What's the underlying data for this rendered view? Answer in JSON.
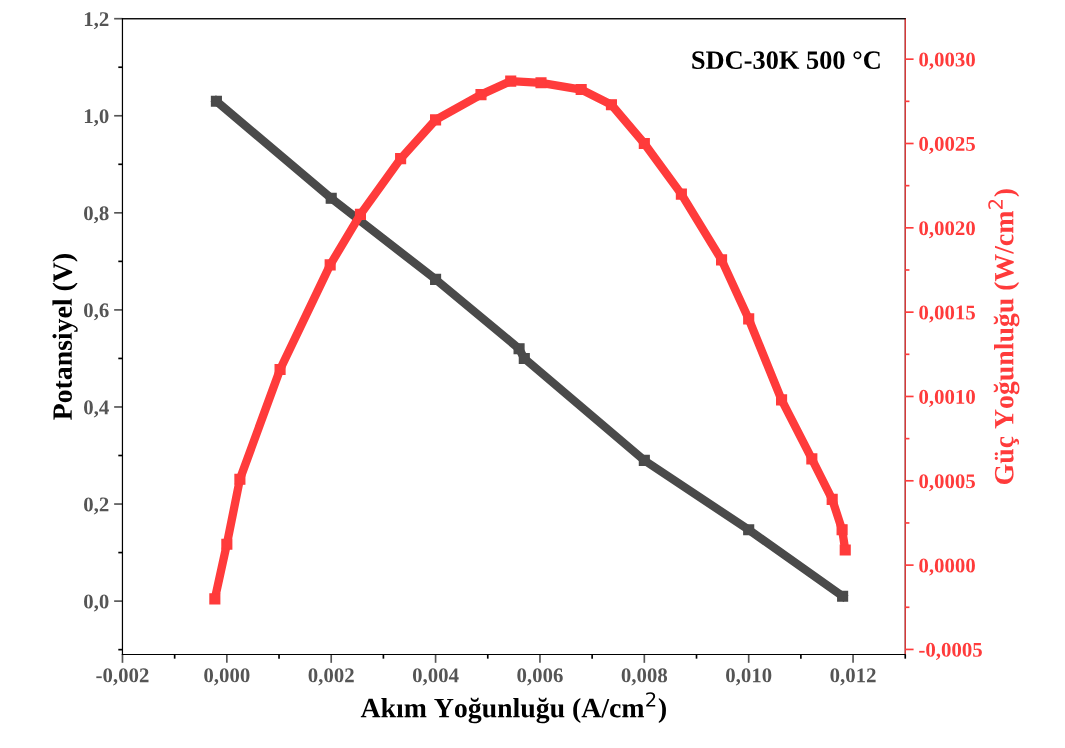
{
  "chart_data": {
    "type": "line",
    "xlabel": "Akım Yoğunluğu (A/cm$^{2}$)",
    "ylabel": "Potansiyel (V)",
    "y2label": "Güç Yoğunluğu (W/cm$^{2}$)",
    "annotations": [
      "SDC-30K 500 °C"
    ],
    "xlim": [
      -0.002,
      0.013
    ],
    "ylim": [
      -0.11,
      1.2
    ],
    "y2lim": [
      -0.00053,
      0.00324
    ],
    "xticks": [
      {
        "value": -0.002,
        "label": "-0,002"
      },
      {
        "value": 0.0,
        "label": "0,000"
      },
      {
        "value": 0.002,
        "label": "0,002"
      },
      {
        "value": 0.004,
        "label": "0,004"
      },
      {
        "value": 0.006,
        "label": "0,006"
      },
      {
        "value": 0.008,
        "label": "0,008"
      },
      {
        "value": 0.01,
        "label": "0,010"
      },
      {
        "value": 0.012,
        "label": "0,012"
      }
    ],
    "yticks": [
      {
        "value": 0.0,
        "label": "0,0"
      },
      {
        "value": 0.2,
        "label": "0,2"
      },
      {
        "value": 0.4,
        "label": "0,4"
      },
      {
        "value": 0.6,
        "label": "0,6"
      },
      {
        "value": 0.8,
        "label": "0,8"
      },
      {
        "value": 1.0,
        "label": "1,0"
      },
      {
        "value": 1.2,
        "label": "1,2"
      }
    ],
    "y2ticks": [
      {
        "value": -0.0005,
        "label": "-0,0005"
      },
      {
        "value": 0.0,
        "label": "0,0000"
      },
      {
        "value": 0.0005,
        "label": "0,0005"
      },
      {
        "value": 0.001,
        "label": "0,0010"
      },
      {
        "value": 0.0015,
        "label": "0,0015"
      },
      {
        "value": 0.002,
        "label": "0,0020"
      },
      {
        "value": 0.0025,
        "label": "0,0025"
      },
      {
        "value": 0.003,
        "label": "0,0030"
      }
    ],
    "marker": "square",
    "grid": false,
    "legend": false,
    "series": [
      {
        "color": "#4a4a4a",
        "x": [
          -0.0002,
          0.002,
          0.004,
          0.0056,
          0.0057,
          0.008,
          0.01,
          0.0118
        ],
        "values": [
          1.03,
          0.83,
          0.663,
          0.52,
          0.5,
          0.29,
          0.147,
          0.01
        ]
      },
      {
        "color": "#ff3b3b",
        "axis": "y2",
        "x": [
          -0.00023,
          0.0,
          0.00025,
          0.00102,
          0.00198,
          0.00256,
          0.00333,
          0.004,
          0.00487,
          0.00544,
          0.00602,
          0.00679,
          0.00737,
          0.008,
          0.00871,
          0.00948,
          0.01,
          0.01063,
          0.01121,
          0.0116,
          0.01179,
          0.01185
        ],
        "values": [
          -0.0002,
          0.000124,
          0.000509,
          0.00116,
          0.00178,
          0.00208,
          0.00241,
          0.00264,
          0.00279,
          0.00287,
          0.00286,
          0.00282,
          0.00273,
          0.0025,
          0.0022,
          0.00181,
          0.00146,
          0.00098,
          0.00063,
          0.00039,
          0.00021,
          9e-05
        ]
      }
    ]
  }
}
